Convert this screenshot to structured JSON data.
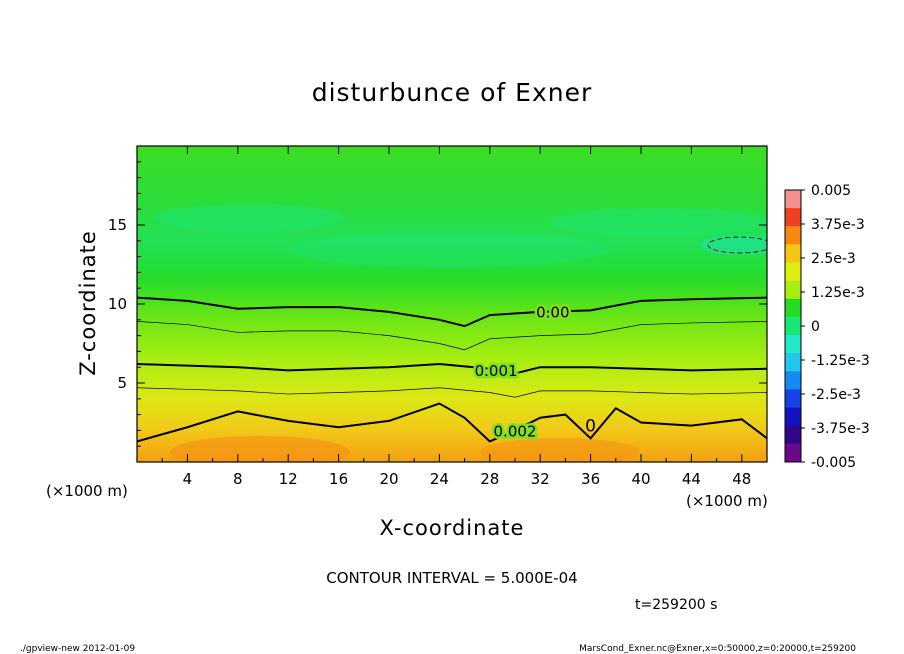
{
  "chart_data": {
    "type": "heatmap",
    "title": "disturbunce of Exner",
    "xlabel": "X-coordinate",
    "ylabel": "Z-coordinate",
    "x_unit": "(×1000 m)",
    "y_unit": "(×1000 m)",
    "xlim": [
      0,
      50
    ],
    "ylim": [
      0,
      20
    ],
    "x_ticks": [
      "4",
      "8",
      "12",
      "16",
      "20",
      "24",
      "28",
      "32",
      "36",
      "40",
      "44",
      "48"
    ],
    "y_ticks": [
      "5",
      "10",
      "15"
    ],
    "colorbar": {
      "labels": [
        "0.005",
        "3.75e-3",
        "2.5e-3",
        "1.25e-3",
        "0",
        "-1.25e-3",
        "-2.5e-3",
        "-3.75e-3",
        "-0.005"
      ],
      "range": [
        -0.005,
        0.005
      ],
      "colors": [
        "#f49090",
        "#f04020",
        "#f58a10",
        "#f5c515",
        "#ddee10",
        "#a8ee10",
        "#22dd22",
        "#18e873",
        "#22e8c5",
        "#20c8ef",
        "#168af0",
        "#1443e6",
        "#1212c0",
        "#330888",
        "#6a0a8a"
      ]
    },
    "contours": [
      {
        "label": "0.00",
        "z_at_x": [
          [
            0,
            10.4
          ],
          [
            4,
            10.2
          ],
          [
            8,
            9.7
          ],
          [
            12,
            9.8
          ],
          [
            16,
            9.8
          ],
          [
            20,
            9.5
          ],
          [
            24,
            9.0
          ],
          [
            26,
            8.6
          ],
          [
            28,
            9.3
          ],
          [
            32,
            9.5
          ],
          [
            36,
            9.6
          ],
          [
            40,
            10.2
          ],
          [
            44,
            10.3
          ],
          [
            50,
            10.4
          ]
        ]
      },
      {
        "label": "0.001",
        "z_at_x": [
          [
            0,
            6.2
          ],
          [
            4,
            6.1
          ],
          [
            8,
            6.0
          ],
          [
            12,
            5.8
          ],
          [
            16,
            5.9
          ],
          [
            20,
            6.0
          ],
          [
            24,
            6.2
          ],
          [
            28,
            5.9
          ],
          [
            30,
            5.6
          ],
          [
            32,
            6.0
          ],
          [
            36,
            6.0
          ],
          [
            40,
            5.9
          ],
          [
            44,
            5.8
          ],
          [
            50,
            5.9
          ]
        ]
      },
      {
        "label": "0.002",
        "z_at_x": [
          [
            0,
            1.3
          ],
          [
            4,
            2.2
          ],
          [
            8,
            3.2
          ],
          [
            12,
            2.6
          ],
          [
            16,
            2.2
          ],
          [
            20,
            2.6
          ],
          [
            24,
            3.7
          ],
          [
            26,
            2.8
          ],
          [
            28,
            1.3
          ],
          [
            30,
            2.0
          ],
          [
            32,
            2.8
          ],
          [
            34,
            3.0
          ],
          [
            36,
            1.5
          ],
          [
            38,
            3.4
          ],
          [
            40,
            2.5
          ],
          [
            44,
            2.3
          ],
          [
            48,
            2.7
          ],
          [
            50,
            1.5
          ]
        ]
      },
      {
        "label": "0",
        "x": 36,
        "z": 2.3
      }
    ],
    "contour_interval_text": "CONTOUR INTERVAL = 5.000E-04",
    "time_text": "t=259200 s"
  },
  "footer": {
    "left": "./gpview-new  2012-01-09",
    "right": "MarsCond_Exner.nc@Exner,x=0:50000,z=0:20000,t=259200"
  }
}
